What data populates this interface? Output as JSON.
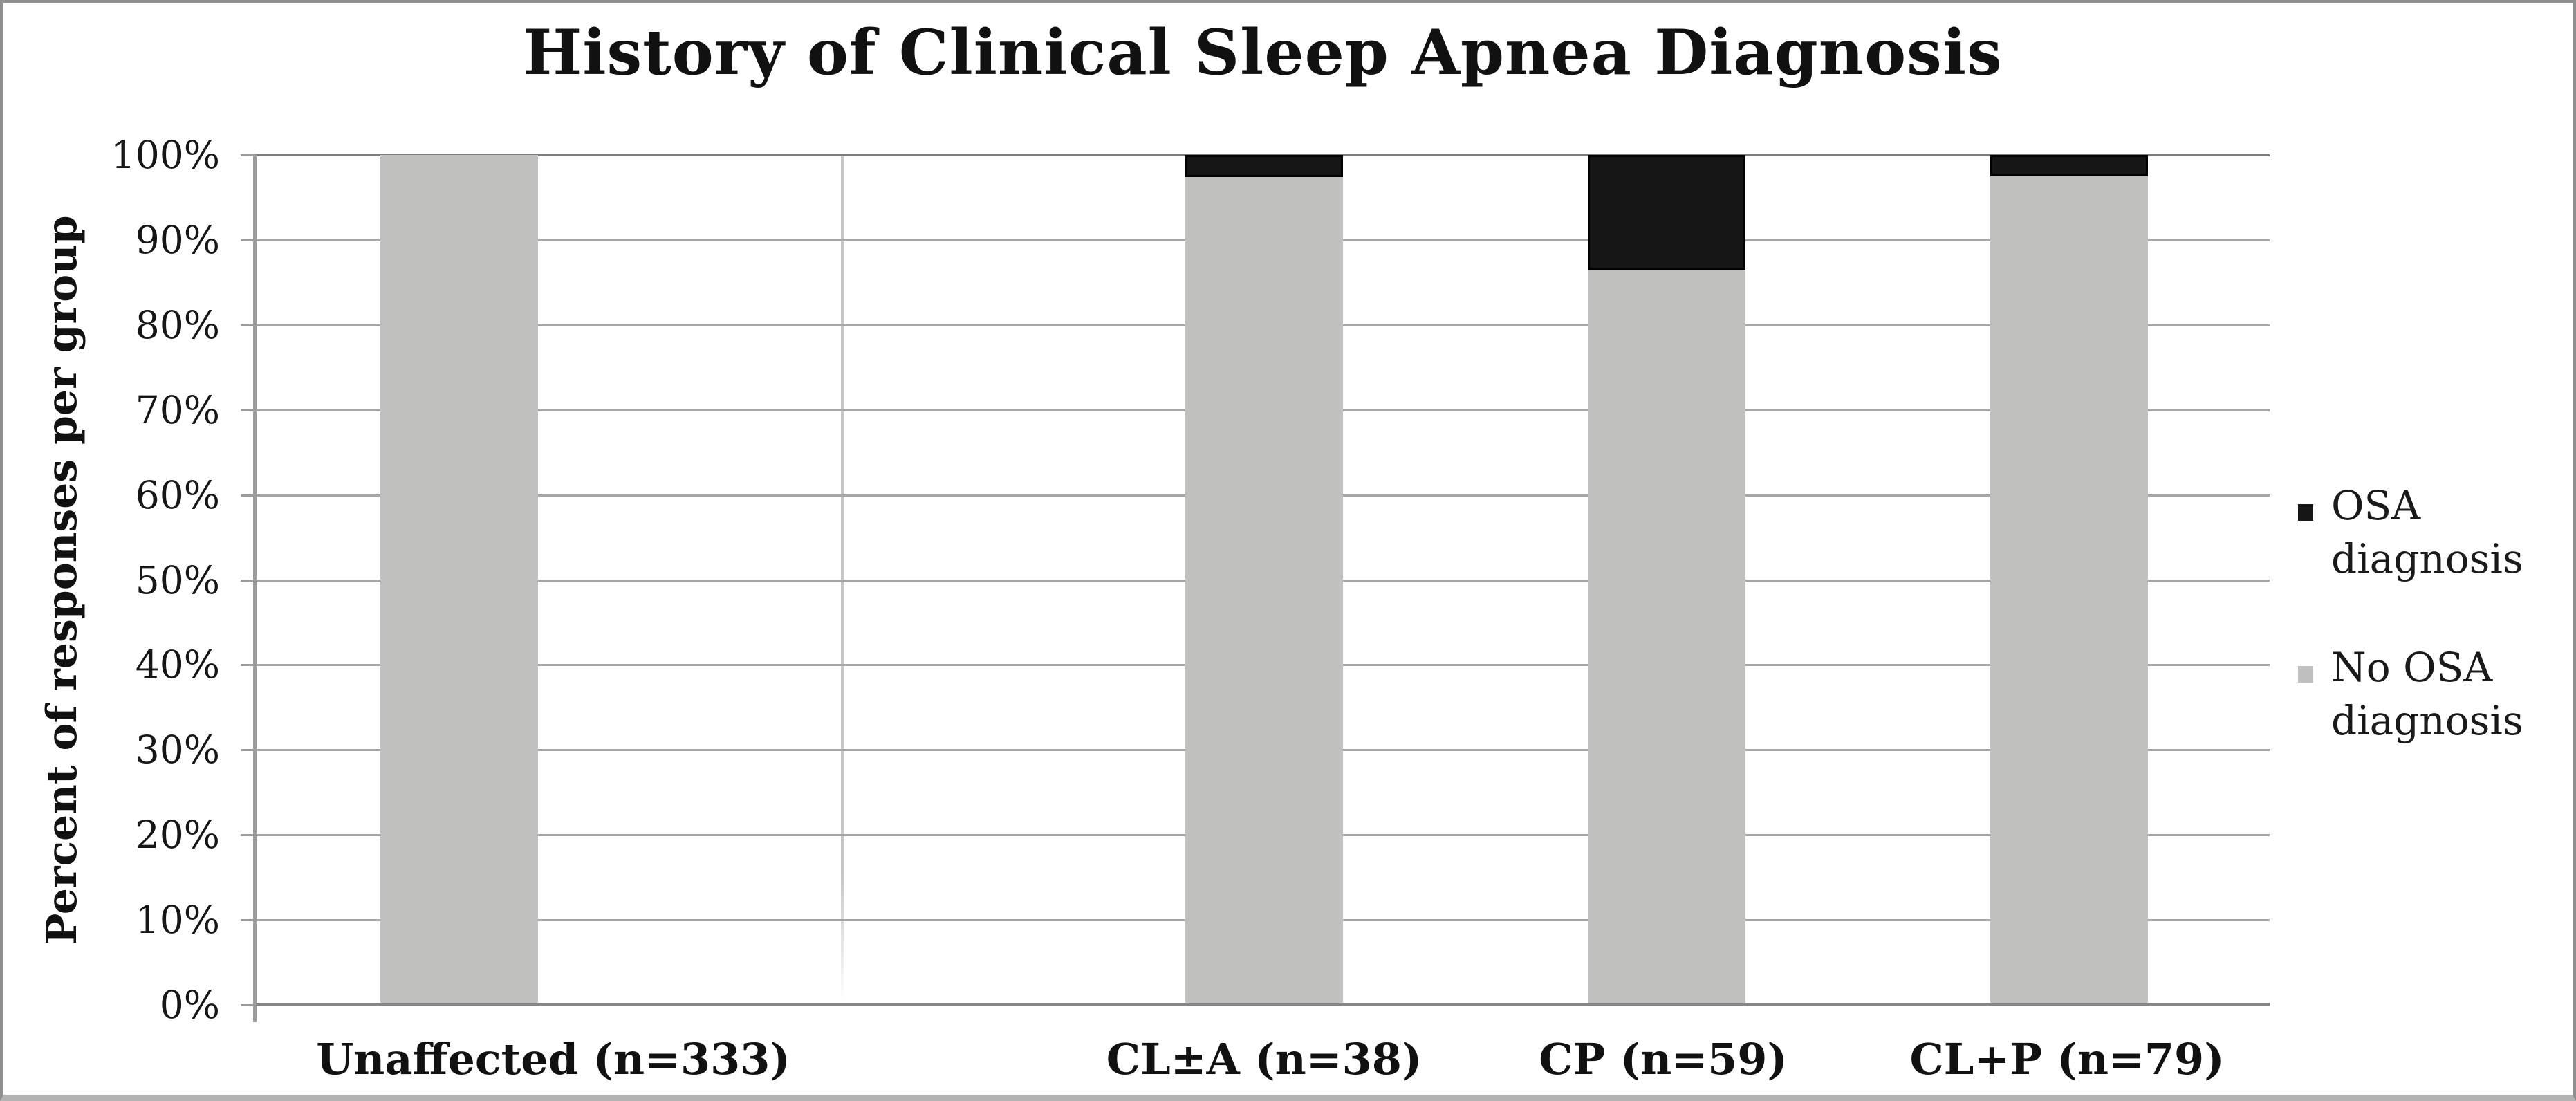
{
  "title": "History of Clinical Sleep Apnea Diagnosis",
  "legend": {
    "position": "right",
    "items": [
      {
        "label": "OSA diagnosis",
        "color": "#161616"
      },
      {
        "label": "No OSA diagnosis",
        "color": "#bfbfbf"
      }
    ]
  },
  "colors": {
    "bar_gray": "#c0c1bf",
    "bar_black": "#161616",
    "gridline": "#a6a6a6",
    "axis": "#868686",
    "frame_border": "#8f8f8f",
    "background": "#ffffff"
  },
  "chart_data": {
    "type": "bar",
    "stacked": true,
    "title": "History of Clinical Sleep Apnea Diagnosis",
    "ylabel": "Percent of responses per group",
    "xlabel": "",
    "categories": [
      "Unaffected (n=333)",
      "CL±A (n=38)",
      "CP (n=59)",
      "CL+P (n=79)"
    ],
    "series": [
      {
        "name": "OSA diagnosis",
        "color": "#161616",
        "values": [
          0,
          2.6,
          13.6,
          2.5
        ]
      },
      {
        "name": "No OSA diagnosis",
        "color": "#c0c1bf",
        "values": [
          100,
          97.4,
          86.4,
          97.5
        ]
      }
    ],
    "value_unit": "percent",
    "ylim": [
      0,
      100
    ],
    "y_tick_step": 10,
    "y_ticks": [
      "0%",
      "10%",
      "20%",
      "30%",
      "40%",
      "50%",
      "60%",
      "70%",
      "80%",
      "90%",
      "100%"
    ],
    "grid": true,
    "legend_position": "right"
  }
}
